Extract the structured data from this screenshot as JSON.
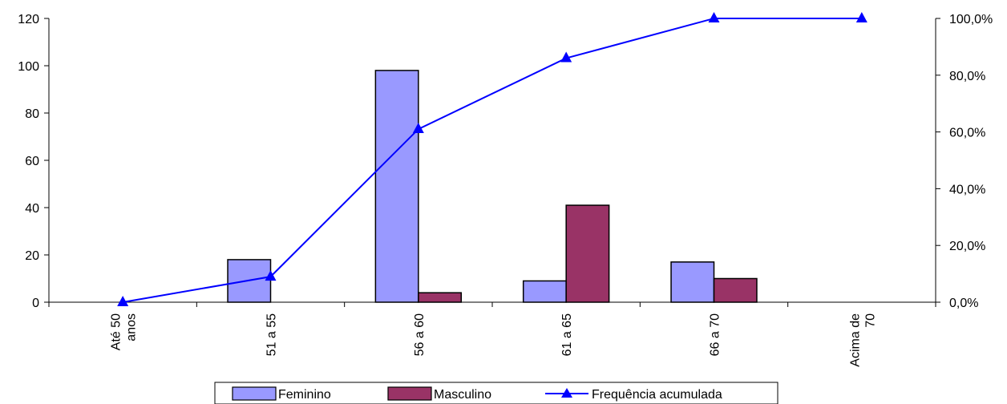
{
  "chart_data": {
    "type": "bar",
    "categories": [
      [
        "Até 50",
        "anos"
      ],
      [
        "51 a  55"
      ],
      [
        "56 a 60"
      ],
      [
        "61 a 65"
      ],
      [
        "66 a 70"
      ],
      [
        "Acima de",
        "70"
      ]
    ],
    "series": [
      {
        "name": "Feminino",
        "type": "bar",
        "axis": "left",
        "color": "#9999FF",
        "values": [
          0,
          18,
          98,
          9,
          17,
          0
        ]
      },
      {
        "name": "Masculino",
        "type": "bar",
        "axis": "left",
        "color": "#993366",
        "values": [
          0,
          0,
          4,
          41,
          10,
          0
        ]
      },
      {
        "name": "Frequência acumulada",
        "type": "line",
        "axis": "right",
        "color": "#0000FF",
        "marker": "triangle",
        "values": [
          0.0,
          9.0,
          61.0,
          86.0,
          100.0,
          100.0
        ]
      }
    ],
    "y_left": {
      "min": 0,
      "max": 120,
      "ticks": [
        0,
        20,
        40,
        60,
        80,
        100,
        120
      ],
      "tick_labels": [
        "0",
        "20",
        "40",
        "60",
        "80",
        "100",
        "120"
      ]
    },
    "y_right": {
      "min": 0,
      "max": 100,
      "ticks": [
        0,
        20,
        40,
        60,
        80,
        100
      ],
      "tick_labels": [
        "0,0%",
        "20,0%",
        "40,0%",
        "60,0%",
        "80,0%",
        "100,0%"
      ]
    },
    "grid": false,
    "legend_position": "bottom"
  }
}
